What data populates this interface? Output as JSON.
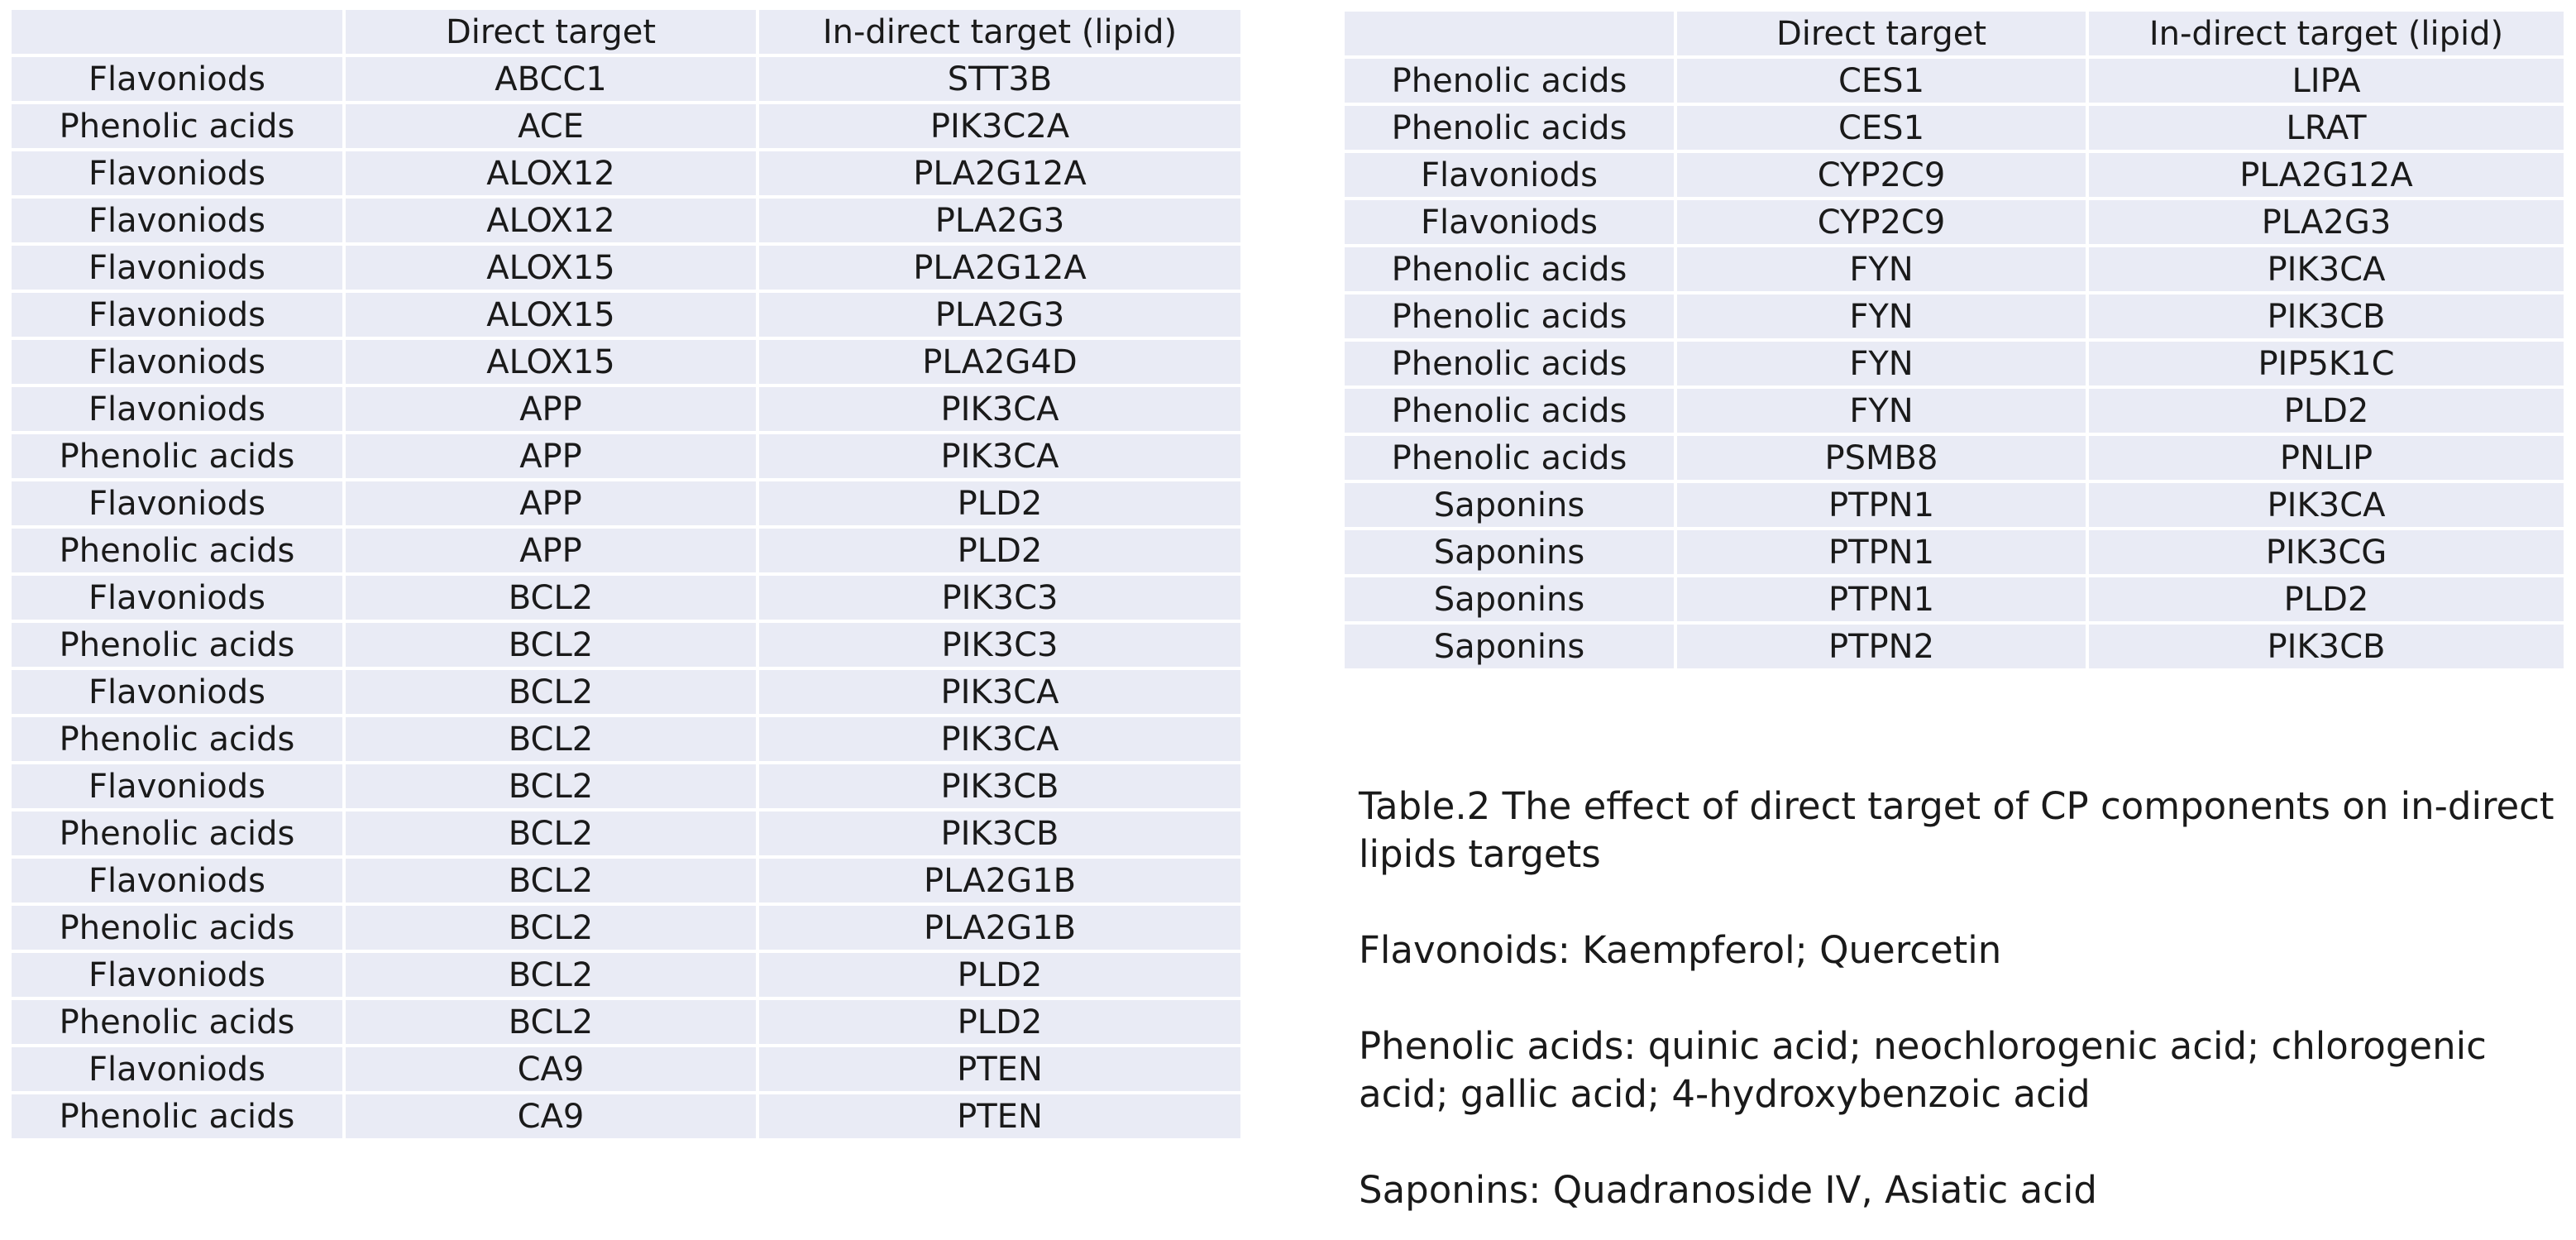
{
  "left_table": {
    "headers": [
      "",
      "Direct target",
      "In-direct target (lipid)"
    ],
    "rows": [
      [
        "Flavoniods",
        "ABCC1",
        "STT3B"
      ],
      [
        "Phenolic acids",
        "ACE",
        "PIK3C2A"
      ],
      [
        "Flavoniods",
        "ALOX12",
        "PLA2G12A"
      ],
      [
        "Flavoniods",
        "ALOX12",
        "PLA2G3"
      ],
      [
        "Flavoniods",
        "ALOX15",
        "PLA2G12A"
      ],
      [
        "Flavoniods",
        "ALOX15",
        "PLA2G3"
      ],
      [
        "Flavoniods",
        "ALOX15",
        "PLA2G4D"
      ],
      [
        "Flavoniods",
        "APP",
        "PIK3CA"
      ],
      [
        "Phenolic acids",
        "APP",
        "PIK3CA"
      ],
      [
        "Flavoniods",
        "APP",
        "PLD2"
      ],
      [
        "Phenolic acids",
        "APP",
        "PLD2"
      ],
      [
        "Flavoniods",
        "BCL2",
        "PIK3C3"
      ],
      [
        "Phenolic acids",
        "BCL2",
        "PIK3C3"
      ],
      [
        "Flavoniods",
        "BCL2",
        "PIK3CA"
      ],
      [
        "Phenolic acids",
        "BCL2",
        "PIK3CA"
      ],
      [
        "Flavoniods",
        "BCL2",
        "PIK3CB"
      ],
      [
        "Phenolic acids",
        "BCL2",
        "PIK3CB"
      ],
      [
        "Flavoniods",
        "BCL2",
        "PLA2G1B"
      ],
      [
        "Phenolic acids",
        "BCL2",
        "PLA2G1B"
      ],
      [
        "Flavoniods",
        "BCL2",
        "PLD2"
      ],
      [
        "Phenolic acids",
        "BCL2",
        "PLD2"
      ],
      [
        "Flavoniods",
        "CA9",
        "PTEN"
      ],
      [
        "Phenolic acids",
        "CA9",
        "PTEN"
      ]
    ]
  },
  "right_table": {
    "headers": [
      "",
      "Direct target",
      "In-direct target (lipid)"
    ],
    "rows": [
      [
        "Phenolic acids",
        "CES1",
        "LIPA"
      ],
      [
        "Phenolic acids",
        "CES1",
        "LRAT"
      ],
      [
        "Flavoniods",
        "CYP2C9",
        "PLA2G12A"
      ],
      [
        "Flavoniods",
        "CYP2C9",
        "PLA2G3"
      ],
      [
        "Phenolic acids",
        "FYN",
        "PIK3CA"
      ],
      [
        "Phenolic acids",
        "FYN",
        "PIK3CB"
      ],
      [
        "Phenolic acids",
        "FYN",
        "PIP5K1C"
      ],
      [
        "Phenolic acids",
        "FYN",
        "PLD2"
      ],
      [
        "Phenolic acids",
        "PSMB8",
        "PNLIP"
      ],
      [
        "Saponins",
        "PTPN1",
        "PIK3CA"
      ],
      [
        "Saponins",
        "PTPN1",
        "PIK3CG"
      ],
      [
        "Saponins",
        "PTPN1",
        "PLD2"
      ],
      [
        "Saponins",
        "PTPN2",
        "PIK3CB"
      ]
    ]
  },
  "caption": {
    "title": "Table.2  The effect of direct target of CP components on in-direct lipids targets",
    "flavonoids": "Flavonoids: Kaempferol; Quercetin",
    "phenolic_acids": "Phenolic acids: quinic acid; neochlorogenic acid; chlorogenic acid; gallic acid; 4-hydroxybenzoic acid",
    "saponins": "Saponins: Quadranoside IV, Asiatic acid"
  }
}
